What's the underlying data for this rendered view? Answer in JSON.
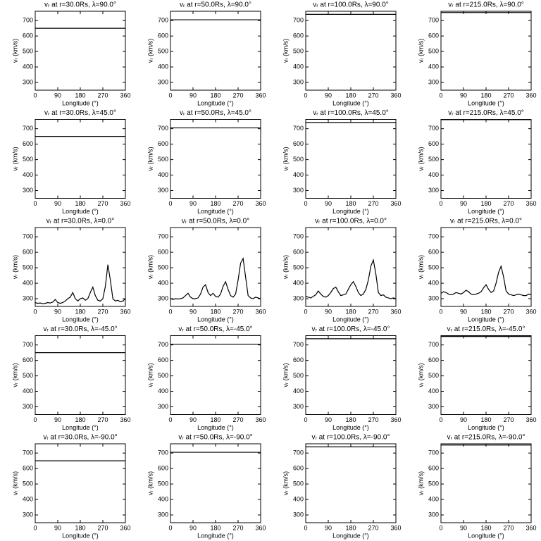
{
  "chart_data": [
    {
      "type": "line",
      "title": "vᵣ at r=30.0Rs, λ=90.0°",
      "xlabel": "Longitude (°)",
      "ylabel": "vᵣ (km/s)",
      "x": [
        0,
        360
      ],
      "values": [
        650,
        650
      ],
      "color": "#000000",
      "xlim": [
        0,
        360
      ],
      "ylim": [
        250,
        760
      ],
      "xticks": [
        0,
        90,
        180,
        270,
        360
      ],
      "yticks": [
        300,
        400,
        500,
        600,
        700
      ]
    },
    {
      "type": "line",
      "title": "vᵣ at r=50.0Rs, λ=90.0°",
      "xlabel": "Longitude (°)",
      "ylabel": "vᵣ (km/s)",
      "x": [
        0,
        360
      ],
      "values": [
        705,
        705
      ],
      "color": "#000000",
      "xlim": [
        0,
        360
      ],
      "ylim": [
        250,
        760
      ],
      "xticks": [
        0,
        90,
        180,
        270,
        360
      ],
      "yticks": [
        300,
        400,
        500,
        600,
        700
      ]
    },
    {
      "type": "line",
      "title": "vᵣ at r=100.0Rs, λ=90.0°",
      "xlabel": "Longitude (°)",
      "ylabel": "vᵣ (km/s)",
      "x": [
        0,
        360
      ],
      "values": [
        740,
        740
      ],
      "color": "#000000",
      "xlim": [
        0,
        360
      ],
      "ylim": [
        250,
        760
      ],
      "xticks": [
        0,
        90,
        180,
        270,
        360
      ],
      "yticks": [
        300,
        400,
        500,
        600,
        700
      ]
    },
    {
      "type": "line",
      "title": "vᵣ at r=215.0Rs, λ=90.0°",
      "xlabel": "Longitude (°)",
      "ylabel": "vᵣ (km/s)",
      "x": [
        0,
        360
      ],
      "values": [
        752,
        752
      ],
      "color": "#000000",
      "xlim": [
        0,
        360
      ],
      "ylim": [
        250,
        760
      ],
      "xticks": [
        0,
        90,
        180,
        270,
        360
      ],
      "yticks": [
        300,
        400,
        500,
        600,
        700
      ]
    },
    {
      "type": "line",
      "title": "vᵣ at r=30.0Rs, λ=45.0°",
      "xlabel": "Longitude (°)",
      "ylabel": "vᵣ (km/s)",
      "x": [
        0,
        360
      ],
      "values": [
        650,
        650
      ],
      "color": "#000000",
      "xlim": [
        0,
        360
      ],
      "ylim": [
        250,
        760
      ],
      "xticks": [
        0,
        90,
        180,
        270,
        360
      ],
      "yticks": [
        300,
        400,
        500,
        600,
        700
      ]
    },
    {
      "type": "line",
      "title": "vᵣ at r=50.0Rs, λ=45.0°",
      "xlabel": "Longitude (°)",
      "ylabel": "vᵣ (km/s)",
      "x": [
        0,
        360
      ],
      "values": [
        705,
        705
      ],
      "color": "#000000",
      "xlim": [
        0,
        360
      ],
      "ylim": [
        250,
        760
      ],
      "xticks": [
        0,
        90,
        180,
        270,
        360
      ],
      "yticks": [
        300,
        400,
        500,
        600,
        700
      ]
    },
    {
      "type": "line",
      "title": "vᵣ at r=100.0Rs, λ=45.0°",
      "xlabel": "Longitude (°)",
      "ylabel": "vᵣ (km/s)",
      "x": [
        0,
        360
      ],
      "values": [
        740,
        740
      ],
      "color": "#000000",
      "xlim": [
        0,
        360
      ],
      "ylim": [
        250,
        760
      ],
      "xticks": [
        0,
        90,
        180,
        270,
        360
      ],
      "yticks": [
        300,
        400,
        500,
        600,
        700
      ]
    },
    {
      "type": "line",
      "title": "vᵣ at r=215.0Rs, λ=45.0°",
      "xlabel": "Longitude (°)",
      "ylabel": "vᵣ (km/s)",
      "x": [
        0,
        360
      ],
      "values": [
        758,
        758
      ],
      "color": "#000000",
      "xlim": [
        0,
        360
      ],
      "ylim": [
        250,
        760
      ],
      "xticks": [
        0,
        90,
        180,
        270,
        360
      ],
      "yticks": [
        300,
        400,
        500,
        600,
        700
      ]
    },
    {
      "type": "line",
      "title": "vᵣ at r=30.0Rs, λ=0.0°",
      "xlabel": "Longitude (°)",
      "ylabel": "vᵣ (km/s)",
      "x": [
        0,
        10,
        20,
        30,
        40,
        50,
        60,
        70,
        80,
        90,
        100,
        110,
        120,
        130,
        140,
        150,
        160,
        170,
        180,
        190,
        200,
        210,
        220,
        230,
        240,
        250,
        260,
        270,
        280,
        290,
        300,
        310,
        320,
        330,
        340,
        350,
        360
      ],
      "values": [
        275,
        270,
        272,
        268,
        270,
        275,
        272,
        278,
        295,
        275,
        270,
        275,
        285,
        300,
        310,
        340,
        300,
        285,
        300,
        305,
        290,
        300,
        340,
        375,
        320,
        290,
        285,
        300,
        380,
        520,
        420,
        300,
        285,
        290,
        280,
        285,
        300
      ],
      "color": "#000000",
      "xlim": [
        0,
        360
      ],
      "ylim": [
        250,
        760
      ],
      "xticks": [
        0,
        90,
        180,
        270,
        360
      ],
      "yticks": [
        300,
        400,
        500,
        600,
        700
      ]
    },
    {
      "type": "line",
      "title": "vᵣ at r=50.0Rs, λ=0.0°",
      "xlabel": "Longitude (°)",
      "ylabel": "vᵣ (km/s)",
      "x": [
        0,
        10,
        20,
        30,
        40,
        50,
        60,
        70,
        80,
        90,
        100,
        110,
        120,
        130,
        140,
        150,
        160,
        170,
        180,
        190,
        200,
        210,
        220,
        230,
        240,
        250,
        260,
        270,
        280,
        290,
        300,
        310,
        320,
        330,
        340,
        350,
        360
      ],
      "values": [
        300,
        295,
        300,
        298,
        300,
        305,
        320,
        335,
        310,
        300,
        300,
        305,
        330,
        375,
        390,
        340,
        320,
        335,
        315,
        310,
        330,
        380,
        410,
        360,
        320,
        310,
        330,
        420,
        530,
        560,
        440,
        320,
        305,
        300,
        310,
        305,
        300
      ],
      "color": "#000000",
      "xlim": [
        0,
        360
      ],
      "ylim": [
        250,
        760
      ],
      "xticks": [
        0,
        90,
        180,
        270,
        360
      ],
      "yticks": [
        300,
        400,
        500,
        600,
        700
      ]
    },
    {
      "type": "line",
      "title": "vᵣ at r=100.0Rs, λ=0.0°",
      "xlabel": "Longitude (°)",
      "ylabel": "vᵣ (km/s)",
      "x": [
        0,
        10,
        20,
        30,
        40,
        50,
        60,
        70,
        80,
        90,
        100,
        110,
        120,
        130,
        140,
        150,
        160,
        170,
        180,
        190,
        200,
        210,
        220,
        230,
        240,
        250,
        260,
        270,
        280,
        290,
        300,
        310,
        320,
        330,
        340,
        350,
        360
      ],
      "values": [
        315,
        310,
        305,
        315,
        325,
        350,
        330,
        315,
        310,
        320,
        340,
        365,
        375,
        345,
        320,
        325,
        330,
        360,
        390,
        410,
        380,
        340,
        320,
        330,
        360,
        420,
        510,
        550,
        460,
        340,
        320,
        325,
        310,
        305,
        300,
        305,
        300
      ],
      "color": "#000000",
      "xlim": [
        0,
        360
      ],
      "ylim": [
        250,
        760
      ],
      "xticks": [
        0,
        90,
        180,
        270,
        360
      ],
      "yticks": [
        300,
        400,
        500,
        600,
        700
      ]
    },
    {
      "type": "line",
      "title": "vᵣ at r=215.0Rs, λ=0.0°",
      "xlabel": "Longitude (°)",
      "ylabel": "vᵣ (km/s)",
      "x": [
        0,
        10,
        20,
        30,
        40,
        50,
        60,
        70,
        80,
        90,
        100,
        110,
        120,
        130,
        140,
        150,
        160,
        170,
        180,
        190,
        200,
        210,
        220,
        230,
        240,
        250,
        260,
        270,
        280,
        290,
        300,
        310,
        320,
        330,
        340,
        350,
        360
      ],
      "values": [
        335,
        345,
        340,
        330,
        325,
        330,
        340,
        335,
        330,
        340,
        355,
        345,
        330,
        325,
        330,
        335,
        345,
        370,
        390,
        360,
        340,
        350,
        400,
        470,
        510,
        440,
        350,
        330,
        325,
        320,
        325,
        330,
        325,
        320,
        320,
        330,
        325
      ],
      "color": "#000000",
      "xlim": [
        0,
        360
      ],
      "ylim": [
        250,
        760
      ],
      "xticks": [
        0,
        90,
        180,
        270,
        360
      ],
      "yticks": [
        300,
        400,
        500,
        600,
        700
      ]
    },
    {
      "type": "line",
      "title": "vᵣ at r=30.0Rs, λ=-45.0°",
      "xlabel": "Longitude (°)",
      "ylabel": "vᵣ (km/s)",
      "x": [
        0,
        360
      ],
      "values": [
        650,
        650
      ],
      "color": "#000000",
      "xlim": [
        0,
        360
      ],
      "ylim": [
        250,
        760
      ],
      "xticks": [
        0,
        90,
        180,
        270,
        360
      ],
      "yticks": [
        300,
        400,
        500,
        600,
        700
      ]
    },
    {
      "type": "line",
      "title": "vᵣ at r=50.0Rs, λ=-45.0°",
      "xlabel": "Longitude (°)",
      "ylabel": "vᵣ (km/s)",
      "x": [
        0,
        360
      ],
      "values": [
        705,
        705
      ],
      "color": "#000000",
      "xlim": [
        0,
        360
      ],
      "ylim": [
        250,
        760
      ],
      "xticks": [
        0,
        90,
        180,
        270,
        360
      ],
      "yticks": [
        300,
        400,
        500,
        600,
        700
      ]
    },
    {
      "type": "line",
      "title": "vᵣ at r=100.0Rs, λ=-45.0°",
      "xlabel": "Longitude (°)",
      "ylabel": "vᵣ (km/s)",
      "x": [
        0,
        360
      ],
      "values": [
        740,
        740
      ],
      "color": "#000000",
      "xlim": [
        0,
        360
      ],
      "ylim": [
        250,
        760
      ],
      "xticks": [
        0,
        90,
        180,
        270,
        360
      ],
      "yticks": [
        300,
        400,
        500,
        600,
        700
      ]
    },
    {
      "type": "line",
      "title": "vᵣ at r=215.0Rs, λ=-45.0°",
      "xlabel": "Longitude (°)",
      "ylabel": "vᵣ (km/s)",
      "x": [
        0,
        360
      ],
      "values": [
        755,
        755
      ],
      "color": "#000000",
      "xlim": [
        0,
        360
      ],
      "ylim": [
        250,
        760
      ],
      "xticks": [
        0,
        90,
        180,
        270,
        360
      ],
      "yticks": [
        300,
        400,
        500,
        600,
        700
      ]
    },
    {
      "type": "line",
      "title": "vᵣ at r=30.0Rs, λ=-90.0°",
      "xlabel": "Longitude (°)",
      "ylabel": "vᵣ (km/s)",
      "x": [
        0,
        360
      ],
      "values": [
        650,
        650
      ],
      "color": "#000000",
      "xlim": [
        0,
        360
      ],
      "ylim": [
        250,
        760
      ],
      "xticks": [
        0,
        90,
        180,
        270,
        360
      ],
      "yticks": [
        300,
        400,
        500,
        600,
        700
      ]
    },
    {
      "type": "line",
      "title": "vᵣ at r=50.0Rs, λ=-90.0°",
      "xlabel": "Longitude (°)",
      "ylabel": "vᵣ (km/s)",
      "x": [
        0,
        360
      ],
      "values": [
        705,
        705
      ],
      "color": "#000000",
      "xlim": [
        0,
        360
      ],
      "ylim": [
        250,
        760
      ],
      "xticks": [
        0,
        90,
        180,
        270,
        360
      ],
      "yticks": [
        300,
        400,
        500,
        600,
        700
      ]
    },
    {
      "type": "line",
      "title": "vᵣ at r=100.0Rs, λ=-90.0°",
      "xlabel": "Longitude (°)",
      "ylabel": "vᵣ (km/s)",
      "x": [
        0,
        360
      ],
      "values": [
        740,
        740
      ],
      "color": "#000000",
      "xlim": [
        0,
        360
      ],
      "ylim": [
        250,
        760
      ],
      "xticks": [
        0,
        90,
        180,
        270,
        360
      ],
      "yticks": [
        300,
        400,
        500,
        600,
        700
      ]
    },
    {
      "type": "line",
      "title": "vᵣ at r=215.0Rs, λ=-90.0°",
      "xlabel": "Longitude (°)",
      "ylabel": "vᵣ (km/s)",
      "x": [
        0,
        360
      ],
      "values": [
        752,
        752
      ],
      "color": "#000000",
      "xlim": [
        0,
        360
      ],
      "ylim": [
        250,
        760
      ],
      "xticks": [
        0,
        90,
        180,
        270,
        360
      ],
      "yticks": [
        300,
        400,
        500,
        600,
        700
      ]
    }
  ]
}
